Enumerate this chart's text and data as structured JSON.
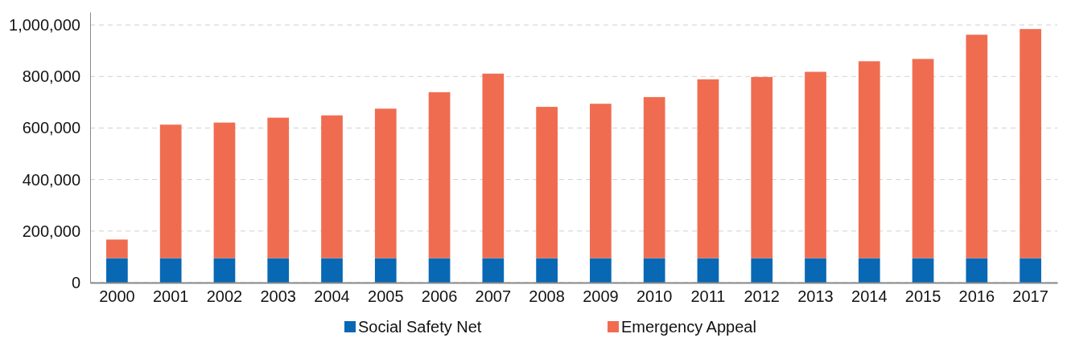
{
  "chart_data": {
    "type": "bar",
    "stacked": true,
    "categories": [
      "2000",
      "2001",
      "2002",
      "2003",
      "2004",
      "2005",
      "2006",
      "2007",
      "2008",
      "2009",
      "2010",
      "2011",
      "2012",
      "2013",
      "2014",
      "2015",
      "2016",
      "2017"
    ],
    "series": [
      {
        "name": "Social Safety Net",
        "color": "#0868b4",
        "values": [
          95000,
          95000,
          95000,
          95000,
          95000,
          95000,
          95000,
          95000,
          95000,
          95000,
          95000,
          95000,
          95000,
          95000,
          95000,
          95000,
          95000,
          95000
        ]
      },
      {
        "name": "Emergency Appeal",
        "color": "#f06c50",
        "values": [
          72000,
          518000,
          526000,
          545000,
          554000,
          580000,
          644000,
          716000,
          587000,
          599000,
          625000,
          694000,
          703000,
          723000,
          764000,
          773000,
          867000,
          889000
        ]
      }
    ],
    "ylim": [
      0,
      1050000
    ],
    "yticks": [
      {
        "value": 0,
        "label": "0"
      },
      {
        "value": 200000,
        "label": "200,000"
      },
      {
        "value": 400000,
        "label": "400,000"
      },
      {
        "value": 600000,
        "label": "600,000"
      },
      {
        "value": 800000,
        "label": "800,000"
      },
      {
        "value": 1000000,
        "label": "1,000,000"
      }
    ],
    "grid": "y",
    "legend": "bottom"
  }
}
